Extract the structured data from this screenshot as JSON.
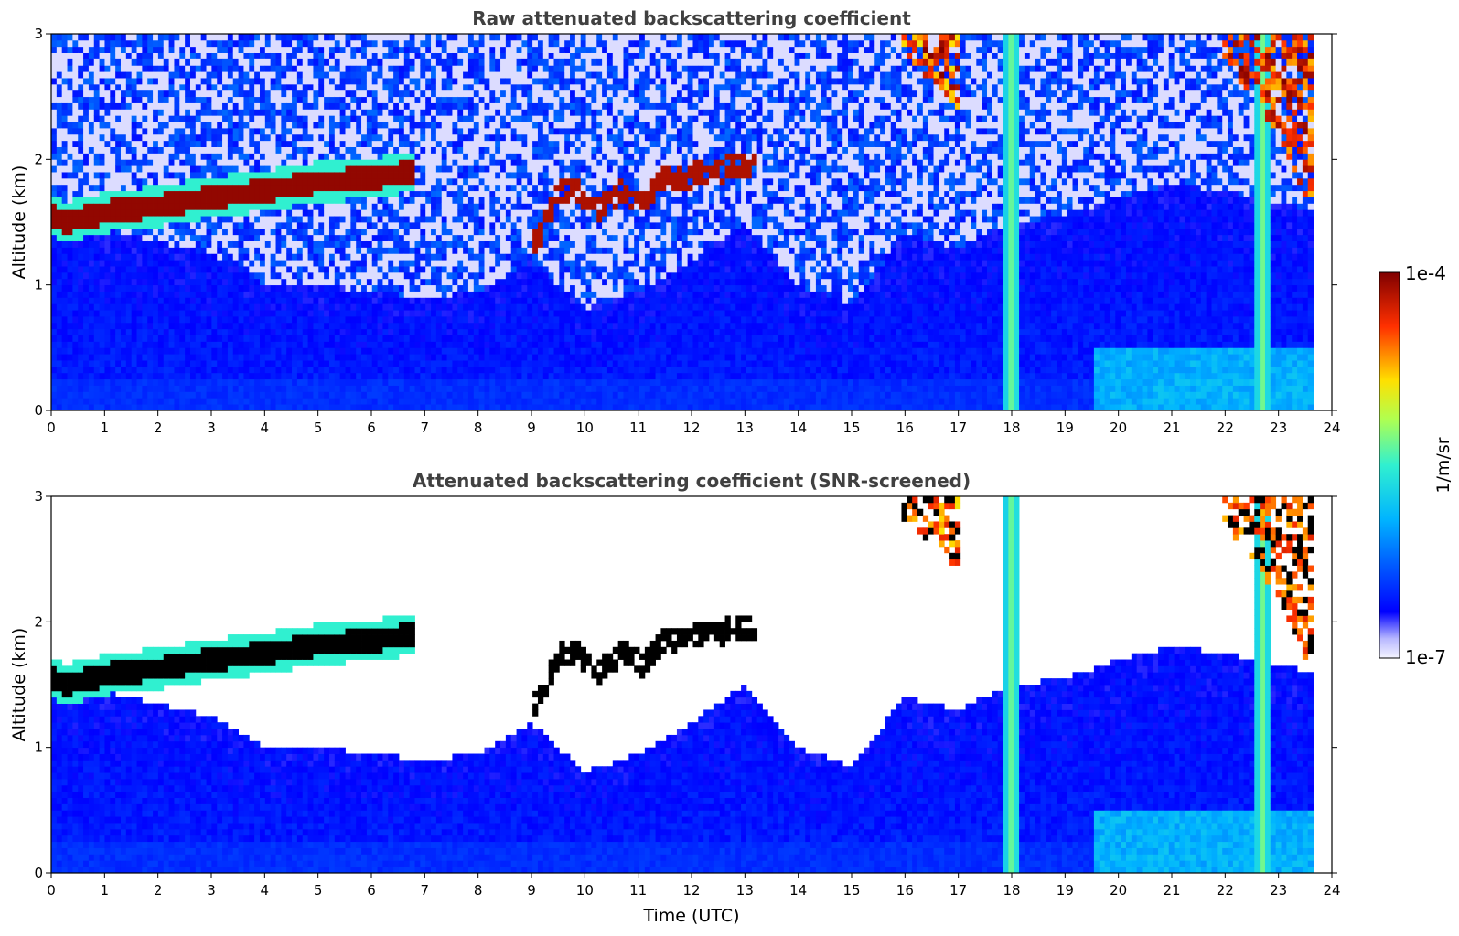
{
  "chart_data": [
    {
      "type": "heatmap",
      "title": "Raw attenuated backscattering coefficient",
      "xlabel": "",
      "ylabel": "Altitude (km)",
      "xlim": [
        0,
        24
      ],
      "ylim": [
        0,
        3
      ],
      "x_ticks": [
        "0",
        "1",
        "2",
        "3",
        "4",
        "5",
        "6",
        "7",
        "8",
        "9",
        "10",
        "11",
        "12",
        "13",
        "14",
        "15",
        "16",
        "17",
        "18",
        "19",
        "20",
        "21",
        "22",
        "23",
        "24"
      ],
      "y_ticks": [
        "0",
        "1",
        "2",
        "3"
      ],
      "data_time_end": 23.65,
      "screened": false,
      "features": {
        "boundary_layer_top": [
          [
            0,
            1.55
          ],
          [
            0.3,
            1.5
          ],
          [
            1,
            1.58
          ],
          [
            2,
            1.63
          ],
          [
            3,
            1.7
          ],
          [
            4,
            1.75
          ],
          [
            5,
            1.82
          ],
          [
            6,
            1.85
          ],
          [
            6.7,
            1.9
          ]
        ],
        "broken_clouds": [
          [
            9.1,
            1.35
          ],
          [
            9.5,
            1.75
          ],
          [
            10,
            1.72
          ],
          [
            10.3,
            1.6
          ],
          [
            10.7,
            1.78
          ],
          [
            11.1,
            1.65
          ],
          [
            11.5,
            1.85
          ],
          [
            12.0,
            1.87
          ],
          [
            12.4,
            1.9
          ],
          [
            12.8,
            1.95
          ]
        ],
        "upper_cloud_16h": [
          [
            15.9,
            2.85
          ],
          [
            16.3,
            2.7
          ],
          [
            16.7,
            2.55
          ],
          [
            17.0,
            2.4
          ]
        ],
        "precip_columns": [
          18.0,
          22.7
        ],
        "upper_cloud_22h": [
          [
            21.9,
            2.85
          ],
          [
            22.4,
            2.55
          ],
          [
            23.0,
            2.2
          ],
          [
            23.5,
            1.7
          ]
        ]
      }
    },
    {
      "type": "heatmap",
      "title": "Attenuated backscattering coefficient (SNR-screened)",
      "xlabel": "Time (UTC)",
      "ylabel": "Altitude (km)",
      "xlim": [
        0,
        24
      ],
      "ylim": [
        0,
        3
      ],
      "x_ticks": [
        "0",
        "1",
        "2",
        "3",
        "4",
        "5",
        "6",
        "7",
        "8",
        "9",
        "10",
        "11",
        "12",
        "13",
        "14",
        "15",
        "16",
        "17",
        "18",
        "19",
        "20",
        "21",
        "22",
        "23",
        "24"
      ],
      "y_ticks": [
        "0",
        "1",
        "2",
        "3"
      ],
      "data_time_end": 23.65,
      "screened": true,
      "aerosol_top_km": [
        [
          0,
          1.5
        ],
        [
          1,
          1.45
        ],
        [
          2,
          1.35
        ],
        [
          3,
          1.25
        ],
        [
          4,
          1.0
        ],
        [
          5,
          1.0
        ],
        [
          6,
          0.95
        ],
        [
          7,
          0.9
        ],
        [
          8,
          0.95
        ],
        [
          9,
          1.2
        ],
        [
          10,
          0.8
        ],
        [
          11,
          0.95
        ],
        [
          12,
          1.2
        ],
        [
          13,
          1.5
        ],
        [
          14,
          1.0
        ],
        [
          15,
          0.85
        ],
        [
          16,
          1.4
        ],
        [
          17,
          1.3
        ],
        [
          18,
          1.5
        ],
        [
          19,
          1.55
        ],
        [
          20,
          1.7
        ],
        [
          21,
          1.8
        ],
        [
          22,
          1.75
        ],
        [
          23,
          1.65
        ],
        [
          23.65,
          1.6
        ]
      ]
    }
  ],
  "colorbar": {
    "label": "1/m/sr",
    "max_label": "1e-4",
    "min_label": "1e-7",
    "scale": "log",
    "colormap": "jet"
  }
}
